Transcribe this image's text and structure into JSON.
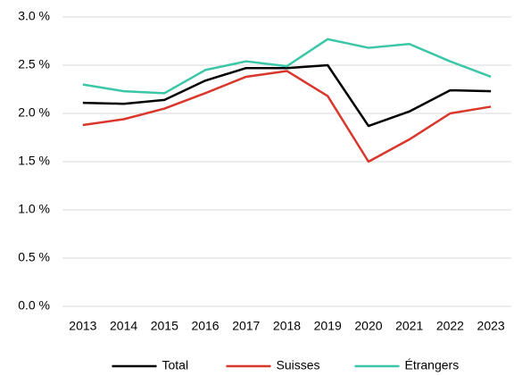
{
  "chart_data": {
    "type": "line",
    "categories": [
      "2013",
      "2014",
      "2015",
      "2016",
      "2017",
      "2018",
      "2019",
      "2020",
      "2021",
      "2022",
      "2023"
    ],
    "series": [
      {
        "name": "Total",
        "color": "#000000",
        "values": [
          2.11,
          2.1,
          2.14,
          2.34,
          2.47,
          2.47,
          2.5,
          1.87,
          2.02,
          2.24,
          2.23
        ]
      },
      {
        "name": "Suisses",
        "color": "#d9372b",
        "values": [
          1.88,
          1.94,
          2.05,
          2.21,
          2.38,
          2.44,
          2.18,
          1.5,
          1.73,
          2.0,
          2.07
        ]
      },
      {
        "name": "Étrangers",
        "color": "#3cc6a8",
        "values": [
          2.3,
          2.23,
          2.21,
          2.45,
          2.54,
          2.49,
          2.77,
          2.68,
          2.72,
          2.54,
          2.38
        ]
      }
    ],
    "ylim": [
      0,
      3
    ],
    "yticks": [
      {
        "value": 0,
        "label": "0.0 %"
      },
      {
        "value": 0.5,
        "label": "0.5 %"
      },
      {
        "value": 1,
        "label": "1.0 %"
      },
      {
        "value": 1.5,
        "label": "1.5 %"
      },
      {
        "value": 2,
        "label": "2.0 %"
      },
      {
        "value": 2.5,
        "label": "2.5 %"
      },
      {
        "value": 3,
        "label": "3.0 %"
      }
    ],
    "grid": true,
    "legend": "bottom"
  }
}
